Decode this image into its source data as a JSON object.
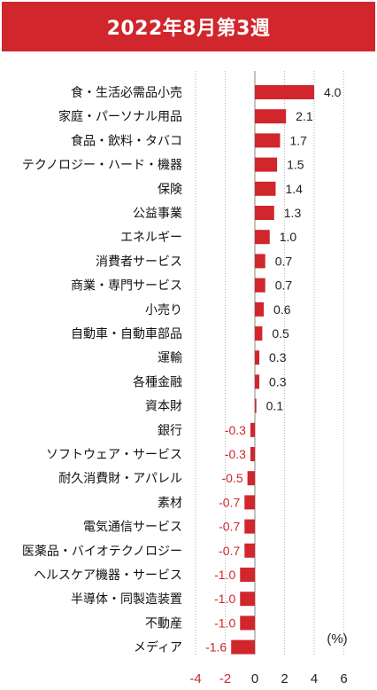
{
  "chart_data": {
    "type": "bar",
    "orientation": "horizontal",
    "title": "2022年8月第3週",
    "unit_label": "(%)",
    "xlim": [
      -4,
      6
    ],
    "xticks": [
      -4,
      -2,
      0,
      2,
      4,
      6
    ],
    "bar_color": "#d0262c",
    "positive_label_color": "#222222",
    "negative_label_color": "#d0262c",
    "categories": [
      "食・生活必需品小売",
      "家庭・パーソナル用品",
      "食品・飲料・タバコ",
      "テクノロジー・ハード・機器",
      "保険",
      "公益事業",
      "エネルギー",
      "消費者サービス",
      "商業・専門サービス",
      "小売り",
      "自動車・自動車部品",
      "運輸",
      "各種金融",
      "資本財",
      "銀行",
      "ソフトウェア・サービス",
      "耐久消費財・アパレル",
      "素材",
      "電気通信サービス",
      "医薬品・バイオテクノロジー",
      "ヘルスケア機器・サービス",
      "半導体・同製造装置",
      "不動産",
      "メディア"
    ],
    "values": [
      4.0,
      2.1,
      1.7,
      1.5,
      1.4,
      1.3,
      1.0,
      0.7,
      0.7,
      0.6,
      0.5,
      0.3,
      0.3,
      0.1,
      -0.3,
      -0.3,
      -0.5,
      -0.7,
      -0.7,
      -0.7,
      -1.0,
      -1.0,
      -1.0,
      -1.6
    ],
    "value_labels": [
      "4.0",
      "2.1",
      "1.7",
      "1.5",
      "1.4",
      "1.3",
      "1.0",
      "0.7",
      "0.7",
      "0.6",
      "0.5",
      "0.3",
      "0.3",
      "0.1",
      "-0.3",
      "-0.3",
      "-0.5",
      "-0.7",
      "-0.7",
      "-0.7",
      "-1.0",
      "-1.0",
      "-1.0",
      "-1.6"
    ]
  }
}
